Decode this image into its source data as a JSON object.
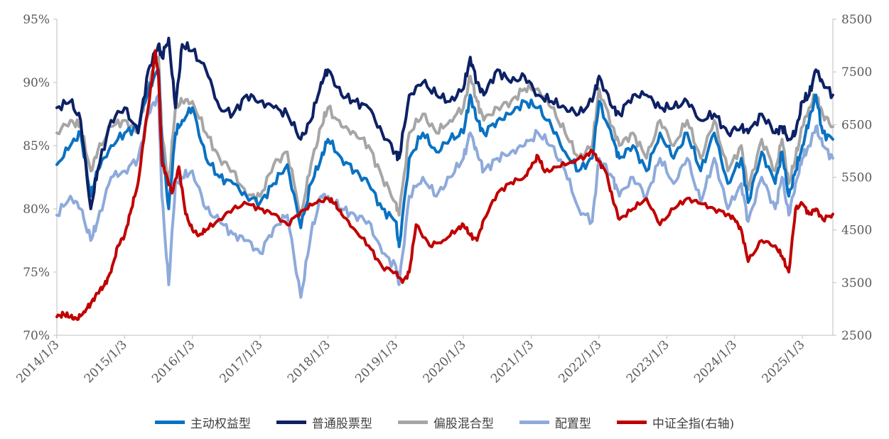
{
  "chart_data": {
    "type": "line",
    "x_ticks": [
      "2014/1/3",
      "2015/1/3",
      "2016/1/3",
      "2017/1/3",
      "2018/1/3",
      "2019/1/3",
      "2020/1/3",
      "2021/1/3",
      "2022/1/3",
      "2023/1/3",
      "2024/1/3",
      "2025/1/3"
    ],
    "y_left": {
      "ticks": [
        "70%",
        "75%",
        "80%",
        "85%",
        "90%",
        "95%"
      ],
      "ylim": [
        70,
        95
      ]
    },
    "y_right": {
      "ticks": [
        "2500",
        "3500",
        "4500",
        "5500",
        "6500",
        "7500",
        "8500"
      ],
      "ylim": [
        2500,
        8500
      ]
    },
    "x_range": [
      2014.0,
      2025.45
    ],
    "series": [
      {
        "name": "主动权益型",
        "color": "#0a72c2",
        "axis": "left",
        "x": [
          2014.0,
          2014.2,
          2014.35,
          2014.5,
          2014.6,
          2014.8,
          2015.0,
          2015.2,
          2015.35,
          2015.5,
          2015.55,
          2015.65,
          2015.75,
          2015.85,
          2016.0,
          2016.2,
          2016.4,
          2016.6,
          2016.8,
          2017.0,
          2017.2,
          2017.4,
          2017.6,
          2017.75,
          2017.9,
          2018.0,
          2018.2,
          2018.4,
          2018.6,
          2018.8,
          2019.0,
          2019.05,
          2019.2,
          2019.4,
          2019.6,
          2019.8,
          2020.0,
          2020.1,
          2020.2,
          2020.3,
          2020.5,
          2020.7,
          2020.9,
          2021.1,
          2021.3,
          2021.5,
          2021.7,
          2021.9,
          2022.0,
          2022.2,
          2022.3,
          2022.5,
          2022.7,
          2022.9,
          2023.1,
          2023.3,
          2023.5,
          2023.7,
          2023.9,
          2024.1,
          2024.2,
          2024.4,
          2024.6,
          2024.7,
          2024.8,
          2024.9,
          2025.0,
          2025.1,
          2025.2,
          2025.3,
          2025.45
        ],
        "values": [
          83.5,
          85,
          86,
          81,
          83,
          85,
          86,
          86.5,
          89.5,
          91,
          85,
          80,
          86,
          87,
          88,
          84,
          82.5,
          82,
          81,
          80.5,
          82,
          83.5,
          78.5,
          82,
          84,
          85.5,
          84,
          83,
          82,
          80,
          79,
          77,
          84,
          86,
          84.5,
          85.5,
          86,
          89,
          87,
          86,
          87,
          87.5,
          88.5,
          88,
          86.5,
          84.5,
          83,
          84,
          88.5,
          85.5,
          84,
          85,
          83,
          86,
          84,
          86,
          83,
          86,
          82,
          84,
          80.5,
          84.5,
          82,
          84.5,
          81,
          83,
          85,
          87,
          89,
          86,
          85.5
        ]
      },
      {
        "name": "普通股票型",
        "color": "#0d2164",
        "axis": "left",
        "x": [
          2014.0,
          2014.2,
          2014.35,
          2014.5,
          2014.6,
          2014.8,
          2015.0,
          2015.2,
          2015.35,
          2015.5,
          2015.55,
          2015.65,
          2015.75,
          2015.85,
          2016.0,
          2016.2,
          2016.4,
          2016.6,
          2016.8,
          2017.0,
          2017.2,
          2017.4,
          2017.6,
          2017.75,
          2017.9,
          2018.0,
          2018.2,
          2018.4,
          2018.6,
          2018.8,
          2019.0,
          2019.05,
          2019.2,
          2019.4,
          2019.6,
          2019.8,
          2020.0,
          2020.1,
          2020.2,
          2020.3,
          2020.5,
          2020.7,
          2020.9,
          2021.1,
          2021.3,
          2021.5,
          2021.7,
          2021.9,
          2022.0,
          2022.2,
          2022.3,
          2022.5,
          2022.7,
          2022.9,
          2023.1,
          2023.3,
          2023.5,
          2023.7,
          2023.9,
          2024.1,
          2024.2,
          2024.4,
          2024.6,
          2024.7,
          2024.8,
          2024.9,
          2025.0,
          2025.1,
          2025.2,
          2025.3,
          2025.45
        ],
        "values": [
          88,
          88.5,
          87,
          80,
          83,
          87,
          88,
          86,
          91,
          93,
          92,
          93.5,
          88,
          93,
          92.5,
          91,
          88,
          87.5,
          89,
          88.5,
          88,
          87.5,
          85.5,
          87,
          90,
          91,
          89,
          88.5,
          88,
          86,
          84.5,
          84,
          89,
          90,
          89,
          88.5,
          89.5,
          92,
          90,
          89,
          91,
          90,
          90.5,
          89,
          88.5,
          88,
          87.5,
          88.5,
          90.5,
          88,
          87.5,
          89,
          89,
          88,
          88,
          88.5,
          87,
          87.5,
          86,
          86.5,
          86,
          87.5,
          86,
          86.5,
          85.5,
          86,
          88.5,
          89,
          91,
          90,
          89
        ]
      },
      {
        "name": "偏股混合型",
        "color": "#a6a6a6",
        "axis": "left",
        "x": [
          2014.0,
          2014.2,
          2014.35,
          2014.5,
          2014.6,
          2014.8,
          2015.0,
          2015.2,
          2015.35,
          2015.5,
          2015.55,
          2015.65,
          2015.75,
          2015.85,
          2016.0,
          2016.2,
          2016.4,
          2016.6,
          2016.8,
          2017.0,
          2017.2,
          2017.4,
          2017.6,
          2017.75,
          2017.9,
          2018.0,
          2018.2,
          2018.4,
          2018.6,
          2018.8,
          2019.0,
          2019.05,
          2019.2,
          2019.4,
          2019.6,
          2019.8,
          2020.0,
          2020.1,
          2020.2,
          2020.3,
          2020.5,
          2020.7,
          2020.9,
          2021.1,
          2021.3,
          2021.5,
          2021.7,
          2021.9,
          2022.0,
          2022.2,
          2022.3,
          2022.5,
          2022.7,
          2022.9,
          2023.1,
          2023.3,
          2023.5,
          2023.7,
          2023.9,
          2024.1,
          2024.2,
          2024.4,
          2024.6,
          2024.7,
          2024.8,
          2024.9,
          2025.0,
          2025.1,
          2025.2,
          2025.3,
          2025.45
        ],
        "values": [
          86,
          87,
          86.5,
          83,
          84.5,
          86.5,
          87,
          86,
          90,
          92,
          86,
          82,
          88,
          88.5,
          88.5,
          86,
          84,
          83,
          81,
          81,
          83.5,
          84.5,
          79.5,
          83.5,
          86.5,
          88,
          86.5,
          86,
          85,
          82.5,
          80.5,
          79.5,
          86,
          87.5,
          86,
          87,
          88,
          90.5,
          88.5,
          87,
          88,
          88.5,
          89.5,
          89.5,
          88,
          86,
          84,
          85,
          89.5,
          86.5,
          85,
          86,
          84,
          87,
          85,
          87,
          84,
          87,
          83,
          85,
          81.5,
          85.5,
          83,
          85.5,
          82,
          84,
          86.5,
          88,
          89,
          87.5,
          86.5
        ]
      },
      {
        "name": "配置型",
        "color": "#8eaadb",
        "axis": "left",
        "x": [
          2014.0,
          2014.2,
          2014.35,
          2014.5,
          2014.6,
          2014.8,
          2015.0,
          2015.2,
          2015.35,
          2015.5,
          2015.55,
          2015.65,
          2015.75,
          2015.85,
          2016.0,
          2016.2,
          2016.4,
          2016.6,
          2016.8,
          2017.0,
          2017.2,
          2017.4,
          2017.6,
          2017.75,
          2017.9,
          2018.0,
          2018.2,
          2018.4,
          2018.6,
          2018.8,
          2019.0,
          2019.05,
          2019.2,
          2019.4,
          2019.6,
          2019.8,
          2020.0,
          2020.1,
          2020.2,
          2020.3,
          2020.5,
          2020.7,
          2020.9,
          2021.1,
          2021.3,
          2021.5,
          2021.7,
          2021.9,
          2022.0,
          2022.2,
          2022.3,
          2022.5,
          2022.7,
          2022.9,
          2023.1,
          2023.3,
          2023.5,
          2023.7,
          2023.9,
          2024.1,
          2024.2,
          2024.4,
          2024.6,
          2024.7,
          2024.8,
          2024.9,
          2025.0,
          2025.1,
          2025.2,
          2025.3,
          2025.45
        ],
        "values": [
          79.5,
          81,
          80,
          77.5,
          79,
          82.5,
          83,
          84,
          87.5,
          89,
          81,
          74,
          82,
          82.5,
          83,
          80,
          79,
          78,
          77.5,
          76.5,
          78.5,
          79.5,
          73,
          78,
          81,
          81,
          80,
          79.5,
          79,
          76.5,
          75.5,
          74,
          81,
          82.5,
          81,
          82.5,
          84,
          86,
          84.5,
          83,
          84,
          84.5,
          85,
          86,
          85,
          83,
          80,
          79,
          84,
          82.5,
          81,
          82.5,
          81,
          84,
          82,
          84,
          80.5,
          84,
          80,
          82,
          79,
          82.5,
          80,
          82.5,
          79.5,
          82,
          84,
          85,
          86.5,
          85,
          84
        ]
      },
      {
        "name": "中证全指(右轴)",
        "color": "#c00000",
        "axis": "right",
        "x": [
          2014.0,
          2014.1,
          2014.2,
          2014.3,
          2014.4,
          2014.5,
          2014.6,
          2014.7,
          2014.8,
          2014.9,
          2015.0,
          2015.1,
          2015.2,
          2015.3,
          2015.4,
          2015.45,
          2015.5,
          2015.55,
          2015.6,
          2015.7,
          2015.8,
          2015.9,
          2016.0,
          2016.1,
          2016.2,
          2016.4,
          2016.6,
          2016.8,
          2017.0,
          2017.2,
          2017.4,
          2017.6,
          2017.8,
          2018.0,
          2018.1,
          2018.2,
          2018.4,
          2018.6,
          2018.8,
          2019.0,
          2019.1,
          2019.2,
          2019.3,
          2019.5,
          2019.7,
          2019.9,
          2020.0,
          2020.1,
          2020.2,
          2020.3,
          2020.5,
          2020.7,
          2020.9,
          2021.0,
          2021.1,
          2021.2,
          2021.4,
          2021.6,
          2021.8,
          2021.9,
          2022.0,
          2022.1,
          2022.2,
          2022.3,
          2022.5,
          2022.7,
          2022.9,
          2023.1,
          2023.3,
          2023.5,
          2023.7,
          2023.9,
          2024.0,
          2024.1,
          2024.2,
          2024.4,
          2024.6,
          2024.7,
          2024.8,
          2024.9,
          2025.0,
          2025.1,
          2025.2,
          2025.3,
          2025.45
        ],
        "values": [
          2850,
          2900,
          2850,
          2800,
          2950,
          3100,
          3300,
          3450,
          3700,
          4200,
          4400,
          4900,
          5400,
          6400,
          7300,
          7900,
          7400,
          5800,
          5600,
          5200,
          5700,
          4800,
          4500,
          4400,
          4500,
          4700,
          4900,
          5000,
          4900,
          4800,
          4600,
          4850,
          5000,
          5100,
          5000,
          4800,
          4500,
          4200,
          3800,
          3700,
          3500,
          3700,
          4600,
          4200,
          4300,
          4500,
          4600,
          4400,
          4300,
          4700,
          5200,
          5400,
          5500,
          5700,
          5900,
          5600,
          5700,
          5800,
          5900,
          6000,
          5800,
          5600,
          5100,
          4700,
          4900,
          5100,
          4600,
          4900,
          5100,
          5000,
          4900,
          4800,
          4700,
          4500,
          3900,
          4300,
          4200,
          4000,
          3700,
          4900,
          5000,
          4800,
          4900,
          4700,
          4800
        ]
      }
    ]
  },
  "legend": [
    {
      "label": "主动权益型",
      "color": "#0a72c2"
    },
    {
      "label": "普通股票型",
      "color": "#0d2164"
    },
    {
      "label": "偏股混合型",
      "color": "#a6a6a6"
    },
    {
      "label": "配置型",
      "color": "#8eaadb"
    },
    {
      "label": "中证全指(右轴)",
      "color": "#c00000"
    }
  ]
}
